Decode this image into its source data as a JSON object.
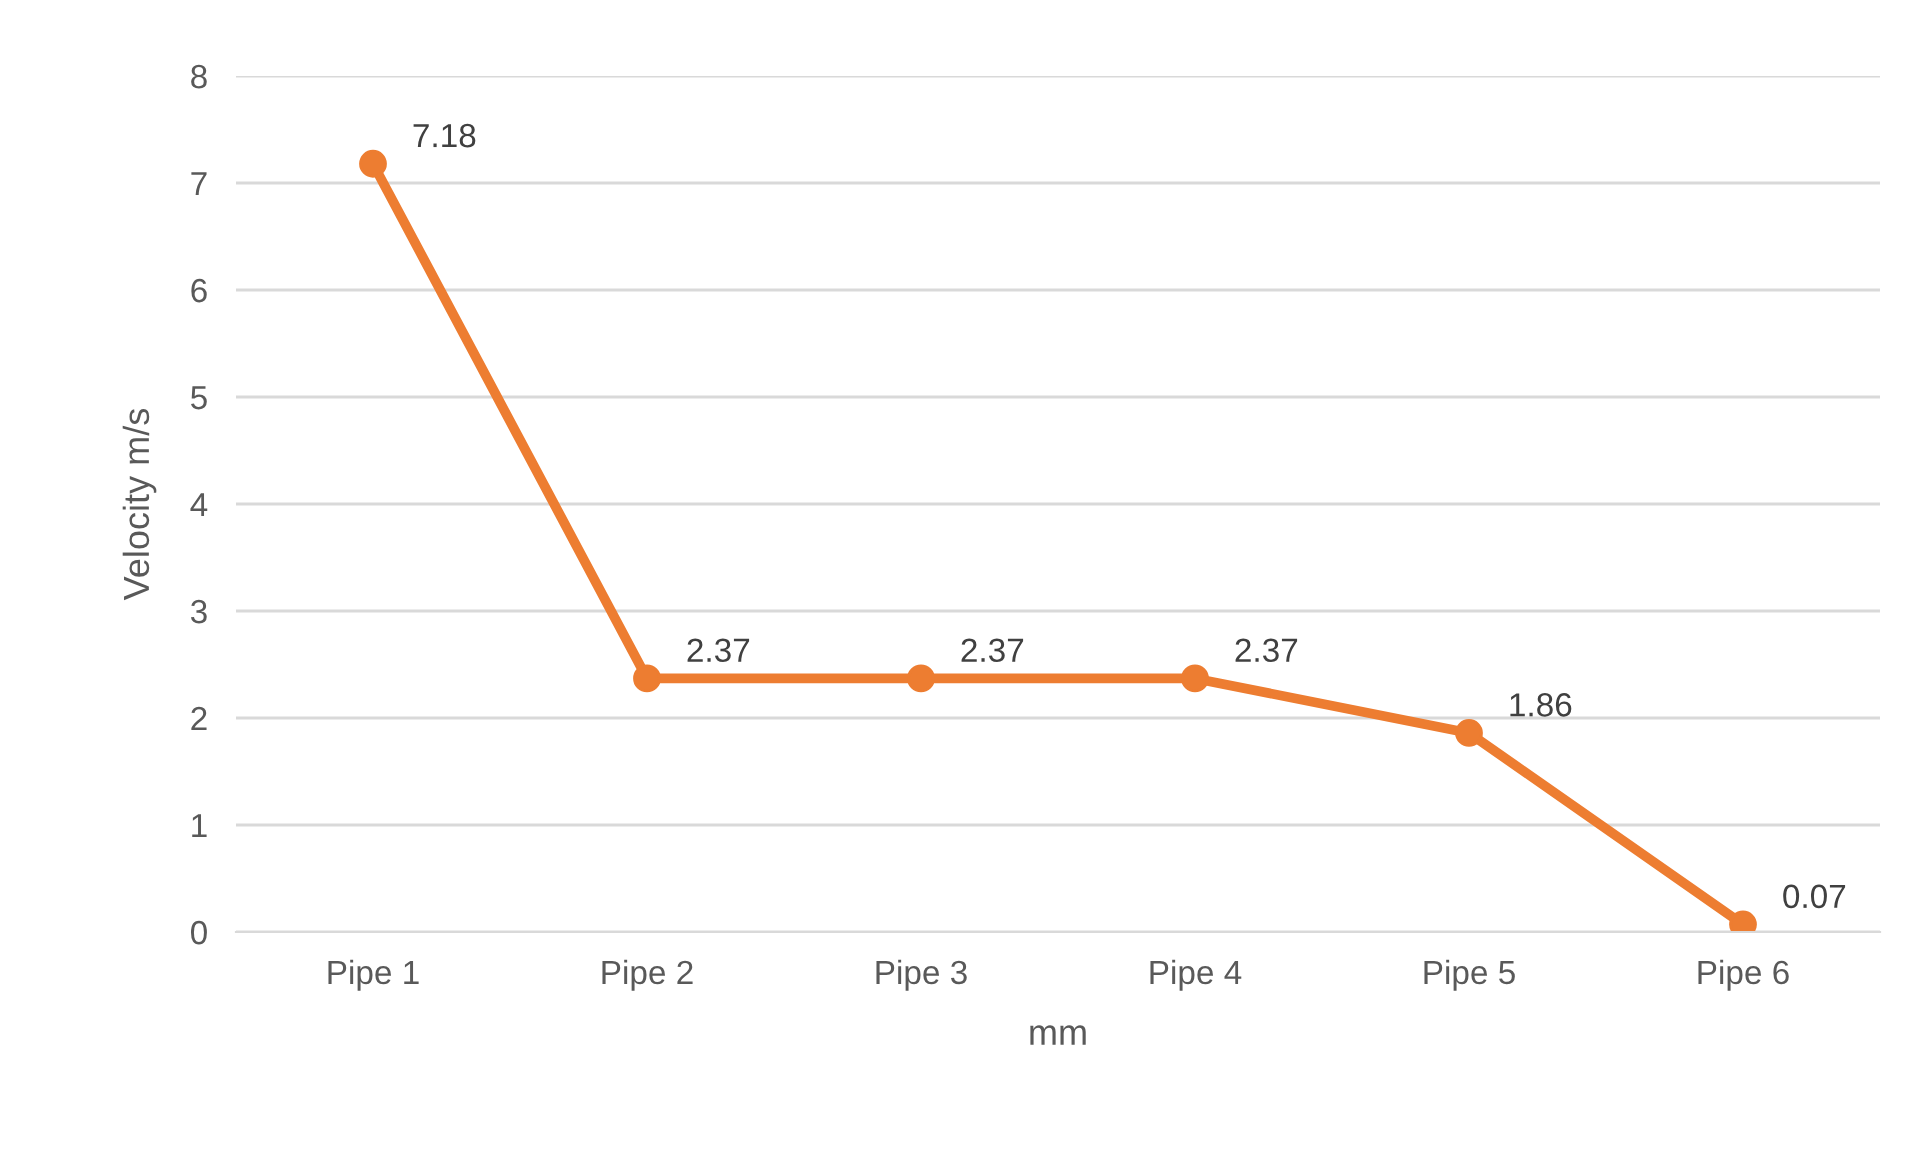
{
  "chart_data": {
    "type": "line",
    "xlabel": "mm",
    "ylabel": "Velocity m/s",
    "categories": [
      "Pipe 1",
      "Pipe 2",
      "Pipe 3",
      "Pipe 4",
      "Pipe 5",
      "Pipe 6"
    ],
    "series": [
      {
        "color": "#ed7d31",
        "values": [
          7.18,
          2.37,
          2.37,
          2.37,
          1.86,
          0.07
        ]
      }
    ],
    "ylim": [
      0,
      8
    ],
    "yticks": [
      0,
      1,
      2,
      3,
      4,
      5,
      6,
      7,
      8
    ],
    "grid": "y",
    "marker": "circle",
    "line_style": "solid",
    "data_labels": true,
    "legend": false
  }
}
